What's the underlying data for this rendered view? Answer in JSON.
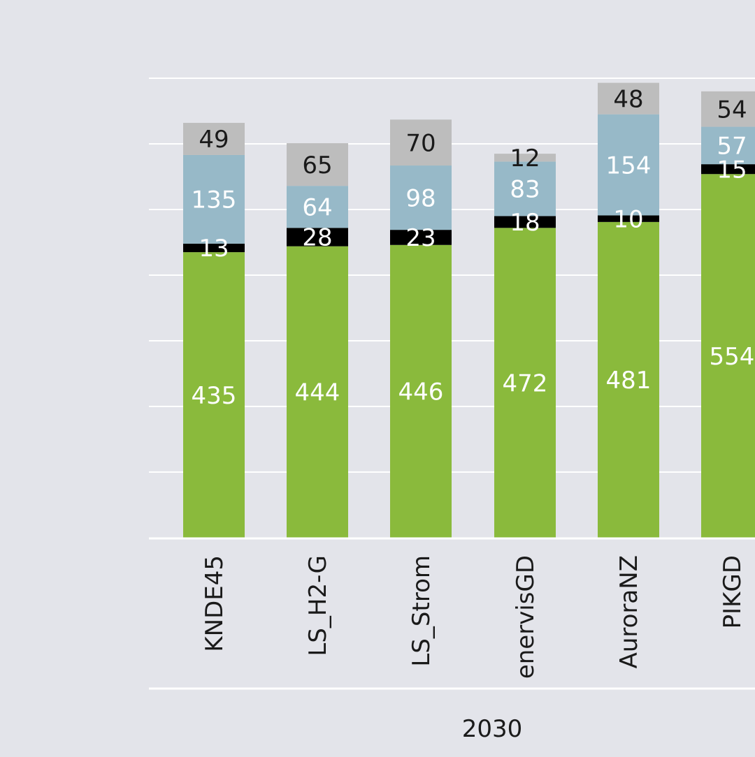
{
  "chart_data": {
    "type": "bar",
    "stacked": true,
    "group_label": "2030",
    "categories": [
      "KNDE45",
      "LS_H2-G",
      "LS_Strom",
      "enervisGD",
      "AuroraNZ",
      "PIKGD"
    ],
    "series": [
      {
        "values": [
          435,
          444,
          446,
          472,
          481,
          554
        ],
        "color": "#8aba3c",
        "label_color": "#ffffff"
      },
      {
        "values": [
          13,
          28,
          23,
          18,
          10,
          15
        ],
        "color": "#000000",
        "label_color": "#ffffff"
      },
      {
        "values": [
          135,
          64,
          98,
          83,
          154,
          57
        ],
        "color": "#97b9c8",
        "label_color": "#ffffff"
      },
      {
        "values": [
          49,
          65,
          70,
          12,
          48,
          54
        ],
        "color": "#bdbdbd",
        "label_color": "#1a1a1a"
      }
    ],
    "ylim": [
      0,
      700
    ],
    "grid": true,
    "legend": false
  }
}
